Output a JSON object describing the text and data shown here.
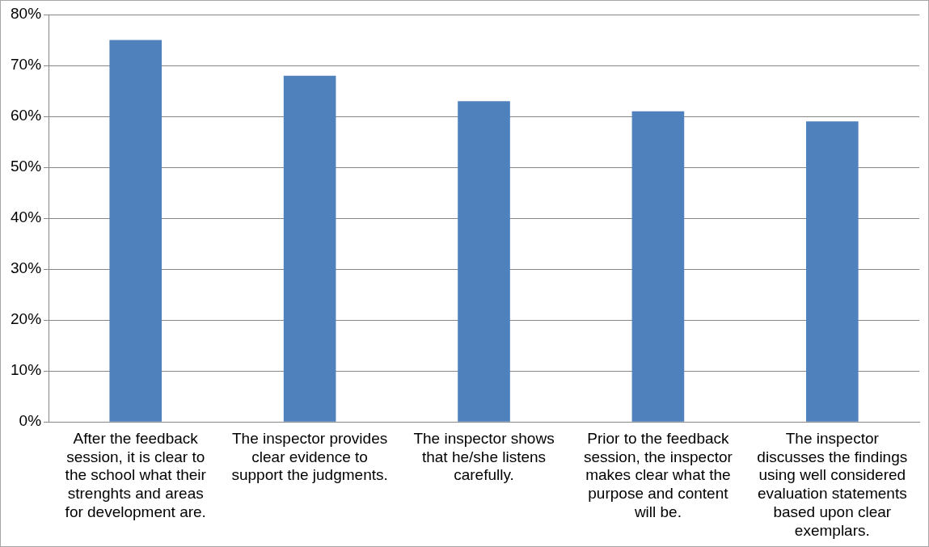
{
  "chart_data": {
    "type": "bar",
    "categories": [
      "After the feedback session, it is clear to the school what their strenghts and areas for development are.",
      "The inspector provides clear evidence to support the judgments.",
      "The inspector shows that he/she listens carefully.",
      "Prior to the feedback session, the inspector makes clear what the purpose and content will be.",
      "The inspector discusses the findings using well considered evaluation statements based upon clear exemplars."
    ],
    "values": [
      75,
      68,
      63,
      61,
      59
    ],
    "color": "#4f81bd",
    "ylim": [
      0,
      80
    ],
    "yticks": [
      {
        "value": 0,
        "label": "0%"
      },
      {
        "value": 10,
        "label": "10%"
      },
      {
        "value": 20,
        "label": "20%"
      },
      {
        "value": 30,
        "label": "30%"
      },
      {
        "value": 40,
        "label": "40%"
      },
      {
        "value": 50,
        "label": "50%"
      },
      {
        "value": 60,
        "label": "60%"
      },
      {
        "value": 70,
        "label": "70%"
      },
      {
        "value": 80,
        "label": "80%"
      }
    ],
    "grid": "y",
    "legend": false
  }
}
